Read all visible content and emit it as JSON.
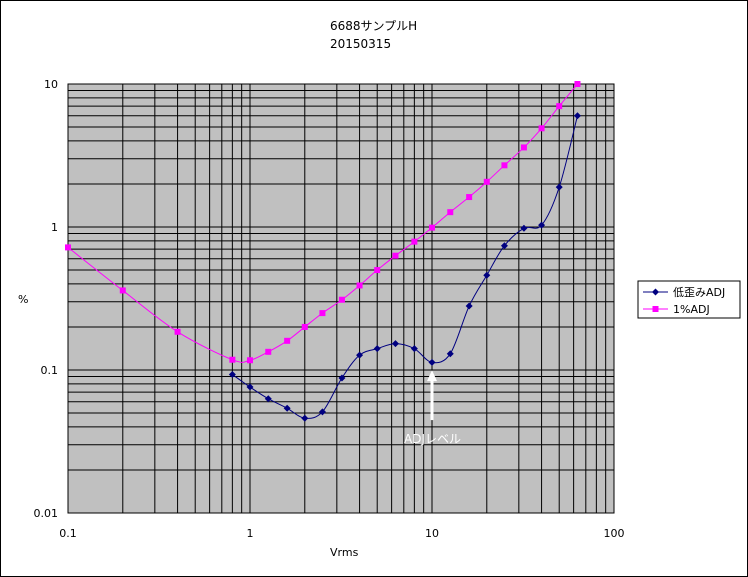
{
  "chart_data": {
    "type": "line",
    "title": "6688サンプルH",
    "subtitle": "20150315",
    "xlabel": "Vrms",
    "ylabel": "%",
    "x_scale": "log",
    "y_scale": "log",
    "xlim": [
      0.1,
      100
    ],
    "ylim": [
      0.01,
      10
    ],
    "x_ticks": [
      "0.1",
      "1",
      "10",
      "100"
    ],
    "y_ticks": [
      "10",
      "1",
      "0.1",
      "0.01"
    ],
    "grid": true,
    "legend_position": "right",
    "series": [
      {
        "name": "低歪みADJ",
        "color": "#000080",
        "marker": "diamond",
        "x": [
          0.8,
          1.0,
          1.26,
          1.6,
          2.0,
          2.5,
          3.2,
          4.0,
          5.0,
          6.3,
          8.0,
          10.0,
          12.6,
          16.0,
          20.0,
          25.0,
          32.0,
          40.0,
          50.0,
          63.0
        ],
        "y": [
          0.093,
          0.076,
          0.063,
          0.054,
          0.046,
          0.051,
          0.088,
          0.127,
          0.141,
          0.153,
          0.141,
          0.113,
          0.13,
          0.28,
          0.46,
          0.74,
          0.98,
          1.03,
          1.9,
          6.0
        ]
      },
      {
        "name": "1%ADJ",
        "color": "#ff00ff",
        "marker": "square",
        "x": [
          0.1,
          0.2,
          0.4,
          0.8,
          1.0,
          1.26,
          1.6,
          2.0,
          2.5,
          3.2,
          4.0,
          5.0,
          6.3,
          8.0,
          10.0,
          12.6,
          16.0,
          20.0,
          25.0,
          32.0,
          40.0,
          50.0,
          63.0
        ],
        "y": [
          0.72,
          0.36,
          0.185,
          0.118,
          0.117,
          0.134,
          0.16,
          0.2,
          0.25,
          0.31,
          0.39,
          0.5,
          0.63,
          0.79,
          0.99,
          1.27,
          1.62,
          2.07,
          2.7,
          3.6,
          4.9,
          7.0,
          10.0
        ]
      }
    ],
    "annotations": [
      {
        "text": "ADJレベル",
        "arrow_to": [
          10,
          0.11
        ]
      }
    ]
  },
  "colors": {
    "plot_background": "#c0c0c0",
    "grid": "#000000",
    "arrow": "#ffffff"
  }
}
